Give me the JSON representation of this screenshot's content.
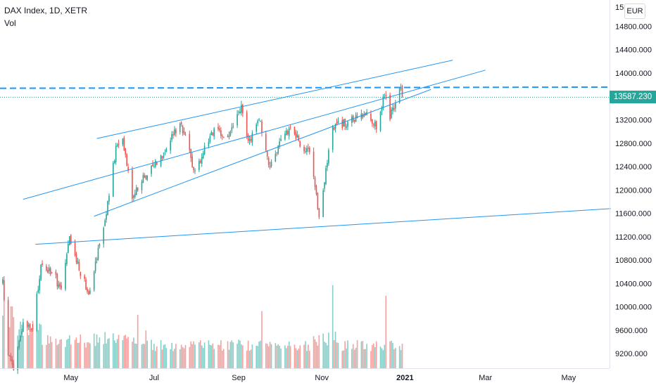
{
  "legend": {
    "symbol": "DAX Index, 1D, XETR",
    "volume": "Vol"
  },
  "currency": "EUR",
  "last_price": "13587.230",
  "chart_data": {
    "type": "candlestick",
    "instrument": "DAX Index",
    "interval": "1D",
    "exchange": "XETR",
    "y_axis": {
      "min": 8950,
      "max": 15250,
      "position": "right",
      "ticks": [
        9200,
        9600,
        10000,
        10400,
        10800,
        11200,
        11600,
        12000,
        12400,
        12800,
        13200,
        13600,
        14000,
        14400,
        14800
      ],
      "tick_labels": [
        "9200.000",
        "9600.000",
        "10000.000",
        "10400.000",
        "10800.000",
        "11200.000",
        "11600.000",
        "12000.000",
        "12400.000",
        "12800.000",
        "13200.000",
        "13600.000",
        "14000.000",
        "14400.000",
        "14800.000"
      ],
      "top_partial_label": "15"
    },
    "x_axis": {
      "labels": [
        "May",
        "Jul",
        "Sep",
        "Nov",
        "2021",
        "Mar",
        "May"
      ],
      "label_dates": [
        "2020-05-01",
        "2020-07-01",
        "2020-09-01",
        "2020-11-01",
        "2021-01-01",
        "2021-03-01",
        "2021-05-01"
      ],
      "start_date": "2020-03-10",
      "end_date": "2021-05-31"
    },
    "up_color": "#26a69a",
    "down_color": "#ef5350",
    "trendline_color": "#2196f3",
    "segments": [
      {
        "from": "2020-03-12",
        "to": "2020-03-16",
        "open": 10400,
        "close": 9200
      },
      {
        "from": "2020-03-16",
        "to": "2020-03-20",
        "open": 9200,
        "close": 8950
      },
      {
        "from": "2020-03-20",
        "to": "2020-03-27",
        "open": 8950,
        "close": 9700
      },
      {
        "from": "2020-03-27",
        "to": "2020-04-03",
        "open": 9700,
        "close": 9600
      },
      {
        "from": "2020-04-03",
        "to": "2020-04-09",
        "open": 9600,
        "close": 10700
      },
      {
        "from": "2020-04-09",
        "to": "2020-04-17",
        "open": 10700,
        "close": 10600
      },
      {
        "from": "2020-04-17",
        "to": "2020-04-24",
        "open": 10600,
        "close": 10300
      },
      {
        "from": "2020-04-24",
        "to": "2020-04-30",
        "open": 10300,
        "close": 11150
      },
      {
        "from": "2020-04-30",
        "to": "2020-05-08",
        "open": 11150,
        "close": 10600
      },
      {
        "from": "2020-05-08",
        "to": "2020-05-14",
        "open": 10600,
        "close": 10250
      },
      {
        "from": "2020-05-14",
        "to": "2020-05-22",
        "open": 10250,
        "close": 11100
      },
      {
        "from": "2020-05-22",
        "to": "2020-05-27",
        "open": 11100,
        "close": 11600
      },
      {
        "from": "2020-05-27",
        "to": "2020-06-03",
        "open": 11600,
        "close": 12700
      },
      {
        "from": "2020-06-03",
        "to": "2020-06-08",
        "open": 12700,
        "close": 12900
      },
      {
        "from": "2020-06-08",
        "to": "2020-06-15",
        "open": 12900,
        "close": 11900
      },
      {
        "from": "2020-06-15",
        "to": "2020-06-26",
        "open": 11900,
        "close": 12300
      },
      {
        "from": "2020-06-26",
        "to": "2020-07-10",
        "open": 12300,
        "close": 12700
      },
      {
        "from": "2020-07-10",
        "to": "2020-07-20",
        "open": 12700,
        "close": 13200
      },
      {
        "from": "2020-07-20",
        "to": "2020-07-31",
        "open": 13200,
        "close": 12300
      },
      {
        "from": "2020-07-31",
        "to": "2020-08-12",
        "open": 12300,
        "close": 13000
      },
      {
        "from": "2020-08-12",
        "to": "2020-08-24",
        "open": 13000,
        "close": 12900
      },
      {
        "from": "2020-08-24",
        "to": "2020-09-03",
        "open": 12900,
        "close": 13400
      },
      {
        "from": "2020-09-03",
        "to": "2020-09-08",
        "open": 13400,
        "close": 12800
      },
      {
        "from": "2020-09-08",
        "to": "2020-09-16",
        "open": 12800,
        "close": 13250
      },
      {
        "from": "2020-09-16",
        "to": "2020-09-21",
        "open": 13250,
        "close": 12600
      },
      {
        "from": "2020-09-21",
        "to": "2020-09-24",
        "open": 12600,
        "close": 12450
      },
      {
        "from": "2020-09-24",
        "to": "2020-10-09",
        "open": 12450,
        "close": 13100
      },
      {
        "from": "2020-10-09",
        "to": "2020-10-16",
        "open": 13100,
        "close": 12800
      },
      {
        "from": "2020-10-16",
        "to": "2020-10-23",
        "open": 12800,
        "close": 12600
      },
      {
        "from": "2020-10-23",
        "to": "2020-10-30",
        "open": 12600,
        "close": 11550
      },
      {
        "from": "2020-10-30",
        "to": "2020-11-04",
        "open": 11550,
        "close": 12350
      },
      {
        "from": "2020-11-04",
        "to": "2020-11-09",
        "open": 12350,
        "close": 13100
      },
      {
        "from": "2020-11-09",
        "to": "2020-11-20",
        "open": 13100,
        "close": 13150
      },
      {
        "from": "2020-11-20",
        "to": "2020-12-04",
        "open": 13150,
        "close": 13300
      },
      {
        "from": "2020-12-04",
        "to": "2020-12-11",
        "open": 13300,
        "close": 13100
      },
      {
        "from": "2020-12-11",
        "to": "2020-12-17",
        "open": 13100,
        "close": 13650
      },
      {
        "from": "2020-12-17",
        "to": "2020-12-21",
        "open": 13650,
        "close": 13250
      },
      {
        "from": "2020-12-21",
        "to": "2020-12-29",
        "open": 13250,
        "close": 13780
      },
      {
        "from": "2020-12-29",
        "to": "2020-12-30",
        "open": 13780,
        "close": 13587
      }
    ],
    "volume": {
      "scale_max": 100,
      "segments": [
        {
          "from": "2020-03-10",
          "to": "2020-03-20",
          "level": 55
        },
        {
          "from": "2020-03-20",
          "to": "2020-04-10",
          "level": 45
        },
        {
          "from": "2020-04-10",
          "to": "2020-05-15",
          "level": 30
        },
        {
          "from": "2020-05-15",
          "to": "2020-06-20",
          "level": 32
        },
        {
          "from": "2020-06-20",
          "to": "2020-09-20",
          "level": 25
        },
        {
          "from": "2020-09-20",
          "to": "2020-10-25",
          "level": 24
        },
        {
          "from": "2020-10-25",
          "to": "2020-11-15",
          "level": 33
        },
        {
          "from": "2020-11-15",
          "to": "2020-12-30",
          "level": 25
        }
      ],
      "spikes": [
        {
          "date": "2020-03-13",
          "level": 85
        },
        {
          "date": "2020-03-20",
          "level": 70
        },
        {
          "date": "2020-06-19",
          "level": 65
        },
        {
          "date": "2020-06-25",
          "level": 55
        },
        {
          "date": "2020-09-18",
          "level": 70
        },
        {
          "date": "2020-11-09",
          "level": 80
        },
        {
          "date": "2020-12-18",
          "level": 75
        }
      ]
    },
    "trendlines": [
      {
        "style": "solid",
        "from": {
          "date": "2020-04-05",
          "price": 11070
        },
        "to": {
          "date": "2021-06-01",
          "price": 11680
        }
      },
      {
        "style": "solid",
        "from": {
          "date": "2020-05-18",
          "price": 11550
        },
        "to": {
          "date": "2021-01-20",
          "price": 13720
        }
      },
      {
        "style": "solid",
        "from": {
          "date": "2020-03-27",
          "price": 11840
        },
        "to": {
          "date": "2021-03-01",
          "price": 14050
        }
      },
      {
        "style": "solid",
        "from": {
          "date": "2020-05-20",
          "price": 12880
        },
        "to": {
          "date": "2021-02-05",
          "price": 14220
        }
      },
      {
        "style": "dashed",
        "from": {
          "date": "2020-03-10",
          "price": 13740
        },
        "to": {
          "date": "2021-06-01",
          "price": 13760
        }
      },
      {
        "style": "dotted",
        "from": {
          "date": "2020-03-10",
          "price": 13587
        },
        "to": {
          "date": "2021-06-01",
          "price": 13587
        }
      }
    ]
  }
}
